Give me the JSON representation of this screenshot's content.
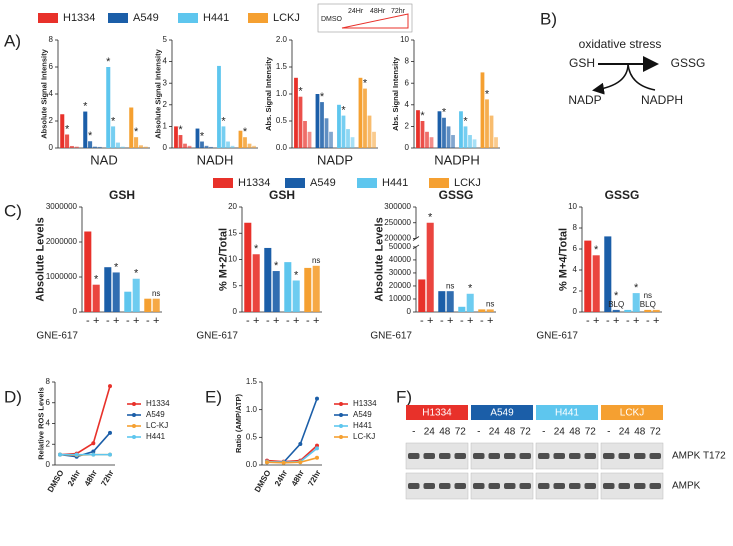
{
  "panel_labels": [
    "A)",
    "B)",
    "C)",
    "D)",
    "E)",
    "F)"
  ],
  "timepoints": [
    "DMSO",
    "24Hr",
    "48Hr",
    "72hr"
  ],
  "diagram": {
    "stress": "oxidative stress",
    "reactant": "GSH",
    "product": "GSSG",
    "cofactor_out": "NADP",
    "cofactor_in": "NADPH"
  },
  "blot": {
    "groups": [
      {
        "name": "H1334",
        "color": "#e8312a"
      },
      {
        "name": "A549",
        "color": "#1b5ea8"
      },
      {
        "name": "H441",
        "color": "#5ec6ee"
      },
      {
        "name": "LCKJ",
        "color": "#f5a031"
      }
    ],
    "lanes": [
      "-",
      "24",
      "48",
      "72"
    ],
    "rows": [
      "AMPK T172",
      "AMPK"
    ]
  },
  "chart_data": [
    {
      "type": "bar",
      "xlabel": "NAD",
      "ylabel": "Absolute Signal Intensity",
      "ylim": [
        0,
        8
      ],
      "yticks": [
        0,
        2,
        4,
        6,
        8
      ],
      "series": [
        {
          "name": "H1334",
          "color": "#e8312a",
          "values": [
            2.5,
            1.0,
            0.15,
            0.1
          ]
        },
        {
          "name": "A549",
          "color": "#1b5ea8",
          "values": [
            2.7,
            0.5,
            0.1,
            0.08
          ]
        },
        {
          "name": "H441",
          "color": "#5ec6ee",
          "values": [
            6.0,
            1.6,
            0.4,
            0.1
          ]
        },
        {
          "name": "LCKJ",
          "color": "#f5a031",
          "values": [
            3.0,
            0.8,
            0.2,
            0.1
          ]
        }
      ],
      "annotations": [
        {
          "text": "*",
          "series": 0,
          "index": 1
        },
        {
          "text": "*",
          "series": 1,
          "index": 1
        },
        {
          "text": "*",
          "series": 2,
          "index": 1
        },
        {
          "text": "*",
          "series": 3,
          "index": 1
        },
        {
          "text": "*",
          "series": 1,
          "index": 0
        },
        {
          "text": "*",
          "series": 2,
          "index": 0
        }
      ]
    },
    {
      "type": "bar",
      "xlabel": "NADH",
      "ylabel": "Absolute Signal Intensity",
      "ylim": [
        0,
        5
      ],
      "yticks": [
        0,
        1,
        2,
        3,
        4,
        5
      ],
      "series": [
        {
          "name": "H1334",
          "color": "#e8312a",
          "values": [
            1.0,
            0.6,
            0.2,
            0.1
          ]
        },
        {
          "name": "A549",
          "color": "#1b5ea8",
          "values": [
            0.9,
            0.3,
            0.1,
            0.05
          ]
        },
        {
          "name": "H441",
          "color": "#5ec6ee",
          "values": [
            3.8,
            1.0,
            0.3,
            0.1
          ]
        },
        {
          "name": "LCKJ",
          "color": "#f5a031",
          "values": [
            0.8,
            0.5,
            0.2,
            0.1
          ]
        }
      ],
      "annotations": [
        {
          "text": "*",
          "series": 0,
          "index": 1
        },
        {
          "text": "*",
          "series": 1,
          "index": 1
        },
        {
          "text": "*",
          "series": 2,
          "index": 1
        },
        {
          "text": "*",
          "series": 3,
          "index": 1
        }
      ]
    },
    {
      "type": "bar",
      "xlabel": "NADP",
      "ylabel": "Abs. Signal Intensity",
      "ylim": [
        0,
        2
      ],
      "yticks": [
        {
          "value": 0,
          "label": "0.0"
        },
        {
          "value": 0.5,
          "label": "0.5"
        },
        {
          "value": 1,
          "label": "1.0"
        },
        {
          "value": 1.5,
          "label": "1.5"
        },
        {
          "value": 2,
          "label": "2.0"
        }
      ],
      "series": [
        {
          "name": "H1334",
          "color": "#e8312a",
          "values": [
            1.3,
            0.95,
            0.5,
            0.3
          ]
        },
        {
          "name": "A549",
          "color": "#1b5ea8",
          "values": [
            1.0,
            0.85,
            0.55,
            0.3
          ]
        },
        {
          "name": "H441",
          "color": "#5ec6ee",
          "values": [
            0.8,
            0.6,
            0.35,
            0.2
          ]
        },
        {
          "name": "LCKJ",
          "color": "#f5a031",
          "values": [
            1.3,
            1.1,
            0.6,
            0.3
          ]
        }
      ],
      "annotations": [
        {
          "text": "*",
          "series": 0,
          "index": 1
        },
        {
          "text": "*",
          "series": 1,
          "index": 1
        },
        {
          "text": "*",
          "series": 2,
          "index": 1
        },
        {
          "text": "*",
          "series": 3,
          "index": 1
        }
      ]
    },
    {
      "type": "bar",
      "xlabel": "NADPH",
      "ylabel": "Abs. Signal Intensity",
      "ylim": [
        0,
        10
      ],
      "yticks": [
        0,
        2,
        4,
        6,
        8,
        10
      ],
      "series": [
        {
          "name": "H1334",
          "color": "#e8312a",
          "values": [
            3.5,
            2.5,
            1.5,
            1.0
          ]
        },
        {
          "name": "A549",
          "color": "#1b5ea8",
          "values": [
            3.4,
            2.8,
            2.0,
            1.2
          ]
        },
        {
          "name": "H441",
          "color": "#5ec6ee",
          "values": [
            3.4,
            2.0,
            1.2,
            0.8
          ]
        },
        {
          "name": "LCKJ",
          "color": "#f5a031",
          "values": [
            7.0,
            4.5,
            3.0,
            1.0
          ]
        }
      ],
      "annotations": [
        {
          "text": "*",
          "series": 0,
          "index": 1
        },
        {
          "text": "*",
          "series": 1,
          "index": 1
        },
        {
          "text": "*",
          "series": 2,
          "index": 1
        },
        {
          "text": "*",
          "series": 3,
          "index": 1
        }
      ]
    },
    {
      "type": "bar",
      "title": "GSH",
      "ylabel": "Absolute Levels",
      "xlabel": "GNE-617",
      "categories": [
        "-",
        "+"
      ],
      "ylim": [
        0,
        3000000
      ],
      "yticks": [
        0,
        1000000,
        2000000,
        3000000
      ],
      "series": [
        {
          "name": "H1334",
          "color": "#e8312a",
          "values": [
            2300000,
            780000
          ]
        },
        {
          "name": "A549",
          "color": "#1b5ea8",
          "values": [
            1280000,
            1130000
          ]
        },
        {
          "name": "H441",
          "color": "#5ec6ee",
          "values": [
            580000,
            950000
          ]
        },
        {
          "name": "LCKJ",
          "color": "#f5a031",
          "values": [
            380000,
            380000
          ]
        }
      ],
      "annotations": [
        {
          "text": "*",
          "series": 0,
          "index": 1
        },
        {
          "text": "*",
          "series": 1,
          "index": 1
        },
        {
          "text": "*",
          "series": 2,
          "index": 1
        },
        {
          "text": "ns",
          "series": 3,
          "index": 1
        }
      ]
    },
    {
      "type": "bar",
      "title": "GSH",
      "ylabel": "% M+2/Total",
      "xlabel": "GNE-617",
      "categories": [
        "-",
        "+"
      ],
      "ylim": [
        0,
        20
      ],
      "yticks": [
        0,
        5,
        10,
        15,
        20
      ],
      "series": [
        {
          "name": "H1334",
          "color": "#e8312a",
          "values": [
            17,
            11
          ]
        },
        {
          "name": "A549",
          "color": "#1b5ea8",
          "values": [
            12.2,
            7.8
          ]
        },
        {
          "name": "H441",
          "color": "#5ec6ee",
          "values": [
            9.5,
            6
          ]
        },
        {
          "name": "LCKJ",
          "color": "#f5a031",
          "values": [
            8.4,
            8.8
          ]
        }
      ],
      "annotations": [
        {
          "text": "*",
          "series": 0,
          "index": 1
        },
        {
          "text": "*",
          "series": 1,
          "index": 1
        },
        {
          "text": "*",
          "series": 2,
          "index": 1
        },
        {
          "text": "ns",
          "series": 3,
          "index": 1
        }
      ]
    },
    {
      "type": "bar",
      "title": "GSSG",
      "ylabel": "Absolute Levels",
      "xlabel": "GNE-617",
      "categories": [
        "-",
        "+"
      ],
      "ylim": [
        0,
        300000
      ],
      "axis_break": [
        50000,
        200000
      ],
      "yticks": [
        0,
        10000,
        20000,
        30000,
        40000,
        50000,
        200000,
        250000,
        300000
      ],
      "series": [
        {
          "name": "H1334",
          "color": "#e8312a",
          "values": [
            25000,
            250000
          ]
        },
        {
          "name": "A549",
          "color": "#1b5ea8",
          "values": [
            16000,
            16000
          ]
        },
        {
          "name": "H441",
          "color": "#5ec6ee",
          "values": [
            4000,
            14000
          ]
        },
        {
          "name": "LCKJ",
          "color": "#f5a031",
          "values": [
            2000,
            2000
          ]
        }
      ],
      "annotations": [
        {
          "text": "*",
          "series": 0,
          "index": 1
        },
        {
          "text": "ns",
          "series": 1,
          "index": 1
        },
        {
          "text": "*",
          "series": 2,
          "index": 1
        },
        {
          "text": "ns",
          "series": 3,
          "index": 1
        }
      ]
    },
    {
      "type": "bar",
      "title": "GSSG",
      "ylabel": "% M+4/Total",
      "xlabel": "GNE-617",
      "categories": [
        "-",
        "+"
      ],
      "ylim": [
        0,
        10
      ],
      "yticks": [
        0,
        2,
        4,
        6,
        8,
        10
      ],
      "series": [
        {
          "name": "H1334",
          "color": "#e8312a",
          "values": [
            6.8,
            5.4
          ]
        },
        {
          "name": "A549",
          "color": "#1b5ea8",
          "values": [
            7.2,
            0.2
          ]
        },
        {
          "name": "H441",
          "color": "#5ec6ee",
          "values": [
            0.2,
            1.8
          ]
        },
        {
          "name": "LCKJ",
          "color": "#f5a031",
          "values": [
            0.2,
            0.2
          ]
        }
      ],
      "annotations": [
        {
          "text": "*",
          "series": 0,
          "index": 1
        },
        {
          "text": "BLQ",
          "series": 1,
          "index": 1
        },
        {
          "text": "*",
          "series": 1,
          "index": 1
        },
        {
          "text": "*",
          "series": 2,
          "index": 1
        },
        {
          "text": "BLQ",
          "series": 3,
          "index": 0
        },
        {
          "text": "ns",
          "series": 3,
          "index": 0
        }
      ]
    },
    {
      "type": "line",
      "ylabel": "Relative ROS Levels",
      "categories": [
        "DMSO",
        "24hr",
        "48hr",
        "72hr"
      ],
      "ylim": [
        0,
        8
      ],
      "yticks": [
        0,
        2,
        4,
        6,
        8
      ],
      "series": [
        {
          "name": "H1334",
          "color": "#e8312a",
          "values": [
            1.0,
            1.1,
            2.1,
            7.6
          ]
        },
        {
          "name": "A549",
          "color": "#1b5ea8",
          "values": [
            1.0,
            0.8,
            1.3,
            3.1
          ]
        },
        {
          "name": "LC-KJ",
          "color": "#f5a031",
          "values": [
            1.0,
            0.95,
            1.0,
            1.0
          ]
        },
        {
          "name": "H441",
          "color": "#5ec6ee",
          "values": [
            1.0,
            1.0,
            1.0,
            1.0
          ]
        }
      ]
    },
    {
      "type": "line",
      "ylabel": "Ratio (AMP/ATP)",
      "categories": [
        "DMSO",
        "24hr",
        "48hr",
        "72hr"
      ],
      "ylim": [
        0,
        1.5
      ],
      "yticks": [
        {
          "value": 0,
          "label": "0.0"
        },
        {
          "value": 0.5,
          "label": "0.5"
        },
        {
          "value": 1,
          "label": "1.0"
        },
        {
          "value": 1.5,
          "label": "1.5"
        }
      ],
      "series": [
        {
          "name": "H1334",
          "color": "#e8312a",
          "values": [
            0.08,
            0.06,
            0.08,
            0.35
          ]
        },
        {
          "name": "A549",
          "color": "#1b5ea8",
          "values": [
            0.05,
            0.05,
            0.38,
            1.2
          ]
        },
        {
          "name": "H441",
          "color": "#5ec6ee",
          "values": [
            0.06,
            0.05,
            0.06,
            0.3
          ]
        },
        {
          "name": "LC-KJ",
          "color": "#f5a031",
          "values": [
            0.05,
            0.04,
            0.05,
            0.13
          ]
        }
      ]
    }
  ]
}
